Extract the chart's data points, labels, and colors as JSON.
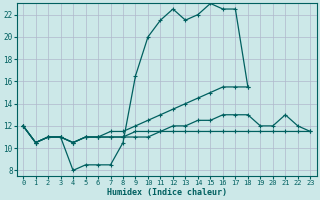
{
  "xlabel": "Humidex (Indice chaleur)",
  "background_color": "#cce8e8",
  "grid_color": "#b0b8cc",
  "line_color": "#006060",
  "xlim": [
    -0.5,
    23.5
  ],
  "ylim": [
    7.5,
    23.0
  ],
  "yticks": [
    8,
    10,
    12,
    14,
    16,
    18,
    20,
    22
  ],
  "xticks": [
    0,
    1,
    2,
    3,
    4,
    5,
    6,
    7,
    8,
    9,
    10,
    11,
    12,
    13,
    14,
    15,
    16,
    17,
    18,
    19,
    20,
    21,
    22,
    23
  ],
  "series": [
    {
      "x": [
        0,
        1,
        2,
        3,
        4,
        5,
        6,
        7,
        8,
        9,
        10,
        11,
        12,
        13,
        14,
        15,
        16,
        17,
        18,
        19,
        20,
        21,
        22,
        23
      ],
      "y": [
        12.0,
        10.5,
        11.0,
        11.0,
        8.0,
        8.5,
        8.5,
        8.5,
        10.5,
        16.5,
        20.0,
        21.5,
        22.5,
        21.5,
        22.0,
        23.0,
        22.5,
        22.5,
        15.5,
        null,
        null,
        null,
        null,
        null
      ]
    },
    {
      "x": [
        0,
        1,
        2,
        3,
        4,
        5,
        6,
        7,
        8,
        9,
        10,
        11,
        12,
        13,
        14,
        15,
        16,
        17,
        18,
        19,
        20,
        21,
        22,
        23
      ],
      "y": [
        12.0,
        10.5,
        11.0,
        11.0,
        10.5,
        11.0,
        11.0,
        11.5,
        11.5,
        12.0,
        12.5,
        13.0,
        13.5,
        14.0,
        14.5,
        15.0,
        15.5,
        15.5,
        15.5,
        null,
        null,
        null,
        null,
        null
      ]
    },
    {
      "x": [
        0,
        1,
        2,
        3,
        4,
        5,
        6,
        7,
        8,
        9,
        10,
        11,
        12,
        13,
        14,
        15,
        16,
        17,
        18,
        19,
        20,
        21,
        22,
        23
      ],
      "y": [
        12.0,
        10.5,
        11.0,
        11.0,
        10.5,
        11.0,
        11.0,
        11.0,
        11.0,
        11.5,
        11.5,
        11.5,
        12.0,
        12.0,
        12.5,
        12.5,
        13.0,
        13.0,
        13.0,
        12.0,
        12.0,
        13.0,
        12.0,
        11.5
      ]
    },
    {
      "x": [
        0,
        1,
        2,
        3,
        4,
        5,
        6,
        7,
        8,
        9,
        10,
        11,
        12,
        13,
        14,
        15,
        16,
        17,
        18,
        19,
        20,
        21,
        22,
        23
      ],
      "y": [
        12.0,
        10.5,
        11.0,
        11.0,
        10.5,
        11.0,
        11.0,
        11.0,
        11.0,
        11.0,
        11.0,
        11.5,
        11.5,
        11.5,
        11.5,
        11.5,
        11.5,
        11.5,
        11.5,
        11.5,
        11.5,
        11.5,
        11.5,
        11.5
      ]
    }
  ]
}
